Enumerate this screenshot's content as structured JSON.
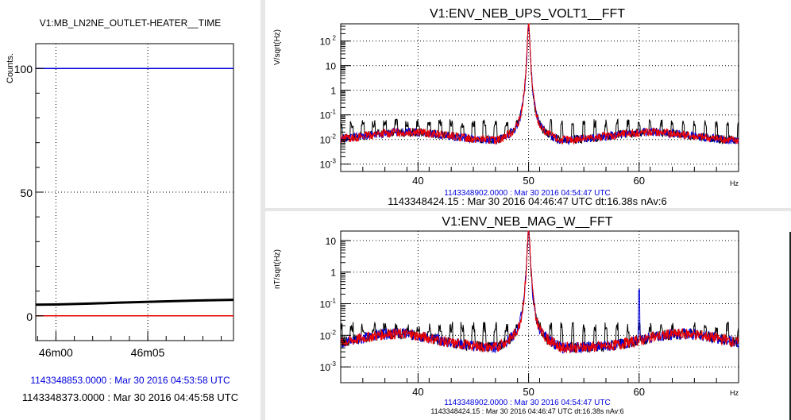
{
  "chart_data": [
    {
      "id": "time",
      "type": "line",
      "title": "V1:MB_LN2NE_OUTLET-HEATER__TIME",
      "ylabel": "Counts.",
      "ylim": [
        -10,
        110
      ],
      "yticks": [
        0,
        50,
        100
      ],
      "xlim_sec": [
        -33,
        290
      ],
      "xticks": [
        {
          "label": "46m00",
          "sec": 0
        },
        {
          "label": "46m05",
          "sec": 150
        }
      ],
      "series": [
        {
          "color": "#0000dd",
          "x": [
            -33,
            290
          ],
          "y": [
            100,
            100
          ]
        },
        {
          "color": "#000000",
          "x": [
            -33,
            0,
            60,
            100,
            170,
            230,
            290
          ],
          "y": [
            4.5,
            4.6,
            5.0,
            5.3,
            5.8,
            6.2,
            6.5
          ]
        },
        {
          "color": "#ee0000",
          "x": [
            -33,
            290
          ],
          "y": [
            0,
            0
          ]
        }
      ],
      "footer_blue": "1143348853.0000 : Mar 30 2016 04:53:58 UTC",
      "footer_black": "1143348373.0000 : Mar 30 2016 04:45:58 UTC"
    },
    {
      "id": "fft1",
      "type": "line",
      "log_y": true,
      "title": "V1:ENV_NEB_UPS_VOLT1__FFT",
      "ylabel": "V/sqrt(Hz)",
      "xlabel": "Hz",
      "xlim": [
        33,
        69
      ],
      "ylim_exp": [
        -3.3,
        2.7
      ],
      "xticks": [
        40,
        50,
        60
      ],
      "yticks": [
        {
          "label": "10",
          "sup": "-3",
          "exp": -3
        },
        {
          "label": "10",
          "sup": "-2",
          "exp": -2
        },
        {
          "label": "10",
          "sup": "-1",
          "exp": -1
        },
        {
          "label": "1",
          "sup": "",
          "exp": 0
        },
        {
          "label": "10",
          "sup": "",
          "exp": 1
        },
        {
          "label": "10",
          "sup": "2",
          "exp": 2
        }
      ],
      "peak_hz": 50,
      "peak_exp": 2.55,
      "base_exp": -2.05,
      "hump_centers": [
        39,
        61
      ],
      "hump_amp": 0.35,
      "comb_hz": 1,
      "comb_exp": -1.35,
      "series": [
        {
          "color": "#000000"
        },
        {
          "color": "#0000dd"
        },
        {
          "color": "#ee0000"
        }
      ],
      "footer_blue": "1143348902.0000 : Mar 30 2016 04:54:47 UTC",
      "footer_black": "1143348424.15 : Mar 30 2016 04:46:47 UTC dt:16.38s nAv:6"
    },
    {
      "id": "fft2",
      "type": "line",
      "log_y": true,
      "title": "V1:ENV_NEB_MAG_W__FFT",
      "ylabel": "nT/sqrt(Hz)",
      "xlabel": "Hz",
      "xlim": [
        33,
        69
      ],
      "ylim_exp": [
        -3.5,
        1.3
      ],
      "xticks": [
        40,
        50,
        60
      ],
      "yticks": [
        {
          "label": "10",
          "sup": "-3",
          "exp": -3
        },
        {
          "label": "10",
          "sup": "-2",
          "exp": -2
        },
        {
          "label": "10",
          "sup": "-1",
          "exp": -1
        },
        {
          "label": "1",
          "sup": "",
          "exp": 0
        },
        {
          "label": "10",
          "sup": "",
          "exp": 1
        }
      ],
      "peak_hz": 50,
      "peak_exp": 1.15,
      "base_exp": -2.4,
      "hump_centers": [
        38,
        64
      ],
      "hump_amp": 0.45,
      "comb_hz": 1,
      "comb_exp": -1.75,
      "spike_hz": 60,
      "spike_exp": -0.6,
      "series": [
        {
          "color": "#000000"
        },
        {
          "color": "#0000dd"
        },
        {
          "color": "#ee0000"
        }
      ],
      "footer_blue": "1143348902.0000 : Mar 30 2016 04:54:47 UTC",
      "footer_black": "1143348424.15 : Mar 30 2016 04:46:47 UTC dt:16.38s nAv:6"
    }
  ]
}
